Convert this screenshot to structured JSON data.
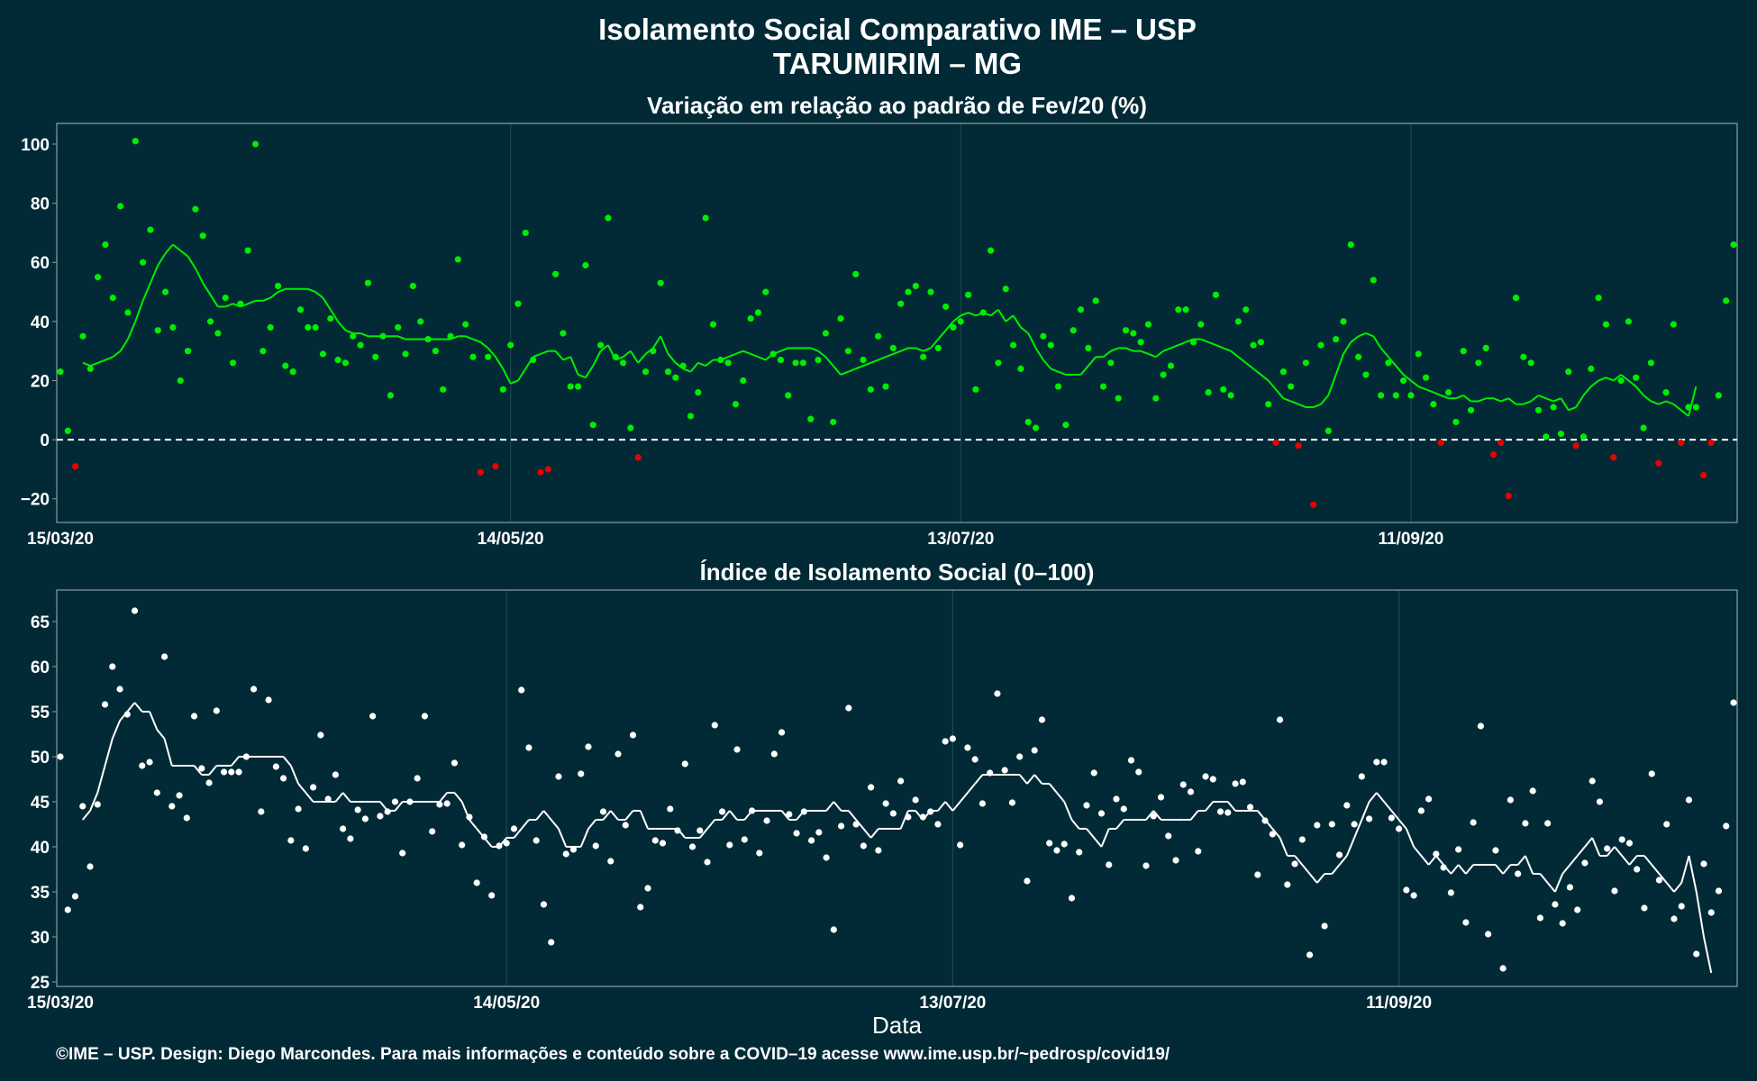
{
  "title_line1": "Isolamento Social Comparativo IME – USP",
  "title_line2": "TARUMIRIM – MG",
  "footer": "©IME – USP. Design: Diego Marcondes. Para mais informações e conteúdo sobre a COVID–19 acesse www.ime.usp.br/~pedrosp/covid19/",
  "colors": {
    "background": "#012a36",
    "positive": "#00ee00",
    "negative": "#ee0000",
    "index": "#ffffff",
    "grid": "#1c4650",
    "panel_border": "#8a9ea4"
  },
  "chart_data": [
    {
      "type": "scatter",
      "title": "Variação em relação ao padrão de Fev/20 (%)",
      "xlabel": "",
      "ylabel": "",
      "x_start_date": "15/03/20",
      "x_ticks": [
        "15/03/20",
        "14/05/20",
        "13/07/20",
        "11/09/20"
      ],
      "ylim": [
        -28,
        107
      ],
      "y_ticks": [
        "-20",
        "0",
        "20",
        "40",
        "60",
        "80",
        "100"
      ],
      "reference_line": 0,
      "grid": true,
      "series": [
        {
          "style": "points, green where >= 0 and red where < 0",
          "values": [
            23,
            3,
            -9,
            35,
            24,
            55,
            66,
            48,
            79,
            43,
            101,
            60,
            71,
            37,
            50,
            38,
            20,
            30,
            78,
            69,
            40,
            36,
            48,
            26,
            46,
            64,
            100,
            30,
            38,
            52,
            25,
            23,
            44,
            38,
            38,
            29,
            41,
            27,
            26,
            35,
            32,
            53,
            28,
            35,
            15,
            38,
            29,
            52,
            40,
            34,
            30,
            17,
            35,
            61,
            39,
            28,
            -11,
            28,
            -9,
            17,
            32,
            46,
            70,
            27,
            -11,
            -10,
            56,
            36,
            18,
            18,
            59,
            5,
            32,
            75,
            28,
            26,
            4,
            -6,
            23,
            30,
            53,
            23,
            21,
            25,
            8,
            16,
            75,
            39,
            27,
            26,
            12,
            20,
            41,
            43,
            50,
            29,
            27,
            15,
            26,
            26,
            7,
            27,
            36,
            6,
            41,
            30,
            56,
            27,
            17,
            35,
            18,
            31,
            46,
            50,
            52,
            28,
            50,
            31,
            45,
            38,
            40,
            49,
            17,
            43,
            64,
            26,
            51,
            32,
            24,
            6,
            4,
            35,
            32,
            18,
            5,
            37,
            44,
            31,
            47,
            18,
            26,
            14,
            37,
            36,
            33,
            39,
            14,
            22,
            25,
            44,
            44,
            33,
            39,
            16,
            49,
            17,
            15,
            40,
            44,
            32,
            33,
            12,
            -1,
            23,
            18,
            -2,
            26,
            -22,
            32,
            3,
            34,
            40,
            66,
            28,
            22,
            54,
            15,
            26,
            15,
            20,
            15,
            29,
            21,
            12,
            -1,
            16,
            6,
            30,
            10,
            26,
            31,
            -5,
            -1,
            -19,
            48,
            28,
            26,
            10,
            1,
            11,
            2,
            23,
            -2,
            1,
            24,
            48,
            39,
            -6,
            20,
            40,
            21,
            4,
            26,
            -8,
            16,
            39,
            -1,
            11,
            11,
            -12,
            -1,
            15,
            47,
            66
          ]
        },
        {
          "style": "7-day moving average line, green where >= 0 and red where < 0",
          "values": [
            26,
            25,
            26,
            27,
            28,
            30,
            34,
            40,
            47,
            53,
            59,
            63,
            66,
            64,
            62,
            58,
            53,
            49,
            45,
            45,
            46,
            45,
            46,
            47,
            47,
            48,
            50,
            51,
            51,
            51,
            51,
            50,
            48,
            44,
            40,
            37,
            36,
            36,
            35,
            35,
            35,
            35,
            35,
            34,
            34,
            34,
            34,
            34,
            34,
            34,
            35,
            35,
            34,
            33,
            31,
            28,
            24,
            19,
            20,
            24,
            28,
            29,
            30,
            30,
            27,
            28,
            22,
            21,
            25,
            30,
            32,
            27,
            28,
            30,
            26,
            29,
            31,
            35,
            29,
            26,
            24,
            23,
            26,
            25,
            27,
            27,
            28,
            29,
            30,
            29,
            28,
            27,
            29,
            30,
            31,
            31,
            31,
            31,
            30,
            28,
            25,
            22,
            23,
            24,
            25,
            26,
            27,
            28,
            29,
            30,
            31,
            31,
            30,
            31,
            34,
            37,
            40,
            42,
            43,
            42,
            43,
            42,
            44,
            40,
            42,
            38,
            36,
            31,
            27,
            24,
            23,
            22,
            22,
            22,
            25,
            28,
            28,
            30,
            31,
            31,
            30,
            30,
            29,
            28,
            30,
            31,
            32,
            33,
            34,
            34,
            33,
            32,
            31,
            30,
            28,
            26,
            24,
            22,
            20,
            17,
            14,
            13,
            12,
            11,
            11,
            12,
            15,
            22,
            29,
            33,
            35,
            36,
            35,
            31,
            28,
            25,
            22,
            20,
            18,
            17,
            16,
            15,
            14,
            14,
            15,
            13,
            13,
            14,
            14,
            13,
            14,
            12,
            12,
            13,
            15,
            14,
            13,
            14,
            10,
            11,
            15,
            18,
            20,
            21,
            20,
            22,
            20,
            18,
            15,
            13,
            12,
            13,
            12,
            10,
            8,
            18
          ]
        }
      ]
    },
    {
      "type": "scatter",
      "title": "Índice de Isolamento Social (0–100)",
      "xlabel": "Data",
      "ylabel": "",
      "x_start_date": "15/03/20",
      "x_ticks": [
        "15/03/20",
        "14/05/20",
        "13/07/20",
        "11/09/20"
      ],
      "ylim": [
        24.5,
        68.5
      ],
      "y_ticks": [
        "25",
        "30",
        "35",
        "40",
        "45",
        "50",
        "55",
        "60",
        "65"
      ],
      "grid": true,
      "series": [
        {
          "style": "white points",
          "values": [
            50,
            33,
            34.5,
            44.5,
            37.8,
            44.7,
            55.8,
            60,
            57.5,
            54.7,
            66.2,
            49,
            49.4,
            46,
            61.1,
            44.5,
            45.7,
            43.2,
            54.5,
            48.7,
            47.1,
            55.1,
            48.3,
            48.3,
            48.3,
            50,
            57.5,
            43.9,
            56.3,
            48.9,
            47.6,
            40.7,
            44.2,
            39.8,
            46.6,
            52.4,
            45.3,
            48,
            42,
            40.9,
            44.1,
            43.1,
            54.5,
            43.4,
            43.9,
            45,
            39.3,
            45,
            47.6,
            54.5,
            41.7,
            44.7,
            44.8,
            49.3,
            40.2,
            43.3,
            36,
            41.1,
            34.6,
            40.1,
            40.4,
            42,
            57.4,
            51,
            40.7,
            33.6,
            29.4,
            47.8,
            39.2,
            39.7,
            48.1,
            51.1,
            40.1,
            43.9,
            38.4,
            50.3,
            42.4,
            52.4,
            33.3,
            35.4,
            40.7,
            40.4,
            44.2,
            41.8,
            49.2,
            40,
            41.8,
            38.3,
            53.5,
            43.9,
            40.2,
            50.8,
            40.8,
            44,
            39.3,
            42.9,
            50.3,
            52.7,
            43.6,
            41.5,
            43.9,
            40.7,
            41.6,
            38.8,
            30.8,
            42.3,
            55.4,
            42.5,
            40.1,
            46.6,
            39.6,
            44.8,
            43.7,
            47.3,
            43.3,
            45.2,
            43.3,
            43.9,
            42.5,
            51.7,
            52,
            40.2,
            51,
            49.7,
            44.8,
            48.2,
            57,
            48.5,
            44.9,
            50,
            36.2,
            50.7,
            54.1,
            40.4,
            39.6,
            40.3,
            34.3,
            39.4,
            44.6,
            48.2,
            43.7,
            38,
            45.3,
            44.2,
            49.6,
            48.3,
            37.9,
            43.4,
            45.5,
            41.2,
            38.5,
            46.9,
            46.1,
            39.5,
            47.8,
            47.5,
            43.9,
            43.8,
            47,
            47.2,
            44.4,
            36.9,
            42.9,
            41.4,
            54.1,
            35.8,
            38.1,
            40.8,
            28,
            42.4,
            31.2,
            42.5,
            39.1,
            44.6,
            42.5,
            47.8,
            43.1,
            49.4,
            49.4,
            43.2,
            42,
            35.2,
            34.6,
            44,
            45.3,
            39.2,
            37.7,
            34.9,
            39.7,
            31.6,
            42.7,
            53.4,
            30.3,
            39.6,
            26.5,
            45.2,
            37,
            42.6,
            46.2,
            32.1,
            42.6,
            33.6,
            31.5,
            35.5,
            33,
            38.2,
            47.3,
            45,
            39.8,
            35.1,
            40.8,
            40.4,
            37.5,
            33.2,
            48.1,
            36.3,
            42.5,
            32,
            33.4,
            45.2,
            28.1,
            38.1,
            32.7,
            35.1,
            42.3,
            56
          ]
        },
        {
          "style": "7-day moving average white line",
          "values": [
            43,
            44,
            46,
            49,
            52,
            54,
            55,
            56,
            55,
            55,
            53,
            52,
            49,
            49,
            49,
            49,
            48,
            48,
            49,
            49,
            49,
            50,
            50,
            50,
            50,
            50,
            50,
            50,
            49,
            47,
            46,
            45,
            45,
            45,
            45,
            46,
            45,
            45,
            45,
            45,
            45,
            44,
            44,
            45,
            45,
            45,
            45,
            45,
            45,
            46,
            46,
            45,
            43,
            42,
            41,
            40,
            40,
            41,
            41,
            42,
            43,
            43,
            44,
            43,
            42,
            40,
            40,
            40,
            42,
            43,
            43,
            44,
            43,
            43,
            44,
            44,
            42,
            42,
            42,
            42,
            42,
            41,
            41,
            41,
            42,
            43,
            43,
            44,
            43,
            43,
            44,
            44,
            44,
            44,
            44,
            43,
            43,
            44,
            44,
            44,
            44,
            45,
            44,
            44,
            43,
            42,
            41,
            42,
            42,
            42,
            42,
            44,
            44,
            43,
            44,
            44,
            45,
            44,
            45,
            46,
            47,
            48,
            48,
            48,
            48,
            48,
            48,
            47,
            48,
            47,
            47,
            46,
            45,
            43,
            42,
            42,
            41,
            40,
            42,
            42,
            43,
            43,
            43,
            43,
            44,
            43,
            43,
            43,
            43,
            43,
            44,
            44,
            45,
            45,
            45,
            44,
            44,
            44,
            44,
            43,
            42,
            41,
            39,
            39,
            38,
            37,
            36,
            37,
            37,
            38,
            39,
            41,
            43,
            45,
            46,
            45,
            44,
            43,
            42,
            40,
            39,
            38,
            39,
            38,
            37,
            38,
            37,
            38,
            38,
            38,
            38,
            37,
            38,
            38,
            39,
            37,
            37,
            36,
            35,
            37,
            38,
            39,
            40,
            41,
            39,
            39,
            40,
            39,
            38,
            39,
            39,
            38,
            37,
            36,
            35,
            36,
            39,
            35,
            30,
            26
          ]
        }
      ]
    }
  ]
}
